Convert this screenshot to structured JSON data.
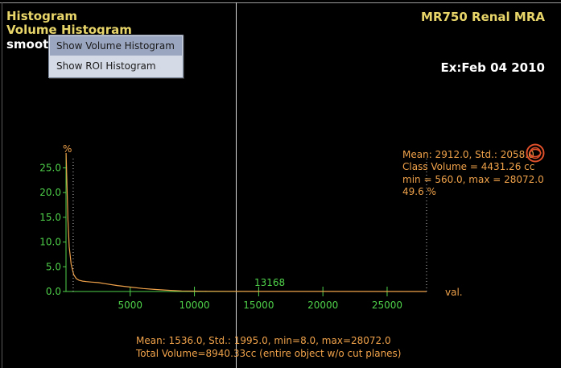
{
  "left_panel": {
    "title_line1": "Histogram",
    "title_line2": "Volume Histogram",
    "title_line3_visible": "smoot"
  },
  "right_panel": {
    "study": "MR750 Renal MRA",
    "exam_date": "Ex:Feb 04 2010"
  },
  "context_menu": {
    "items": [
      {
        "label": "Show Volume Histogram",
        "highlighted": true
      },
      {
        "label": "Show ROI Histogram",
        "highlighted": false
      }
    ]
  },
  "class_stats": {
    "line1": "Mean: 2912.0, Std.: 2058.0",
    "line2": "Class Volume = 4431.26 cc",
    "line3": "min = 560.0, max = 28072.0",
    "line4": "49.6 %"
  },
  "total_stats": {
    "line1": "Mean: 1536.0, Std.: 1995.0, min=8.0, max=28072.0",
    "line2": "Total Volume=8940.33cc (entire object w/o cut planes)"
  },
  "cursor_value": "13168",
  "colors": {
    "axis": "#4fd24a",
    "curve": "#f0a24a",
    "text_orange": "#f0a24a",
    "title_yellow": "#e8d56a",
    "logo": "#e0502a"
  },
  "icons": {
    "logo": "ge-logo-icon"
  },
  "chart_data": {
    "type": "line",
    "xlabel": "val.",
    "ylabel": "%",
    "xlim": [
      0,
      28072
    ],
    "ylim": [
      0,
      28
    ],
    "x_ticks": [
      5000,
      10000,
      15000,
      20000,
      25000
    ],
    "y_ticks": [
      0.0,
      5.0,
      10.0,
      15.0,
      20.0,
      25.0
    ],
    "x_tick_labels": [
      "5000",
      "10000",
      "15000",
      "20000",
      "25000"
    ],
    "y_tick_labels": [
      "0.0",
      "5.0",
      "10.0",
      "15.0",
      "20.0",
      "25.0"
    ],
    "series": [
      {
        "x": [
          8,
          150,
          250,
          400,
          600,
          800,
          1000,
          1300,
          1600,
          2000,
          2500,
          3000,
          4000,
          5000,
          6000,
          7000,
          8000,
          9000,
          11000,
          15000,
          20000,
          28072
        ],
        "y": [
          28.0,
          14.5,
          9.0,
          5.5,
          3.4,
          2.6,
          2.3,
          2.1,
          2.0,
          1.9,
          1.8,
          1.6,
          1.2,
          0.9,
          0.6,
          0.4,
          0.25,
          0.12,
          0.05,
          0.02,
          0.01,
          0.0
        ]
      }
    ],
    "markers": [
      {
        "kind": "min",
        "x": 560.0
      },
      {
        "kind": "max",
        "x": 28072.0
      }
    ]
  }
}
